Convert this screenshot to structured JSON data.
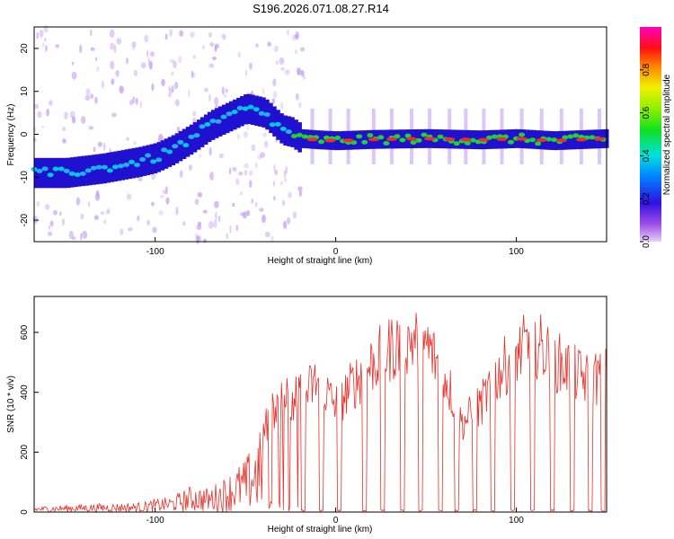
{
  "title": "S196.2026.071.08.27.R14",
  "colors": {
    "snr_line": "#e8302a",
    "ridge_core": "#e8302a",
    "ridge_mid": "#22d030",
    "ridge_edge": "#2010d0",
    "halo": "#c8a0f0"
  },
  "chart_data": [
    {
      "type": "heatmap",
      "name": "spectrogram",
      "xlabel": "Height of straight line (km)",
      "ylabel": "Frequency (Hz)",
      "xlim": [
        -167,
        150
      ],
      "ylim": [
        -25,
        25
      ],
      "x_ticks": [
        -100,
        0,
        100
      ],
      "x_tick_labels": [
        "-100",
        "0",
        "100"
      ],
      "y_ticks": [
        -20,
        -10,
        0,
        10,
        20
      ],
      "y_tick_labels": [
        "-20",
        "-10",
        "0",
        "10",
        "20"
      ],
      "ridge": {
        "x": [
          -167,
          -150,
          -130,
          -110,
          -100,
          -90,
          -80,
          -70,
          -60,
          -50,
          -40,
          -30,
          -25,
          -20,
          -10,
          0,
          20,
          50,
          80,
          100,
          120,
          150
        ],
        "freq_hz": [
          -9,
          -9,
          -8,
          -6.5,
          -5.5,
          -3.5,
          -1,
          2,
          4,
          6,
          5,
          1,
          0.5,
          -1,
          -1.3,
          -1.5,
          -1.2,
          -1,
          -1.3,
          -1,
          -1.5,
          -1
        ]
      },
      "colorbar": {
        "label": "Normalized spectral amplitude",
        "ticks": [
          0.0,
          0.2,
          0.4,
          0.6,
          0.8
        ],
        "tick_labels": [
          "0.0",
          "0.2",
          "0.4",
          "0.6",
          "0.8"
        ],
        "range": [
          0,
          1
        ]
      }
    },
    {
      "type": "line",
      "name": "snr",
      "xlabel": "Height of straight line (km)",
      "ylabel": "SNR (10 * v/v)",
      "xlim": [
        -167,
        150
      ],
      "ylim": [
        0,
        720
      ],
      "x_ticks": [
        -100,
        0,
        100
      ],
      "x_tick_labels": [
        "-100",
        "0",
        "100"
      ],
      "y_ticks": [
        0,
        200,
        400,
        600
      ],
      "y_tick_labels": [
        "0",
        "200",
        "400",
        "600"
      ],
      "envelope": {
        "x": [
          -167,
          -140,
          -110,
          -90,
          -80,
          -70,
          -60,
          -50,
          -40,
          -30,
          -20,
          -10,
          0,
          10,
          20,
          30,
          40,
          50,
          60,
          70,
          80,
          90,
          100,
          110,
          120,
          130,
          140,
          150
        ],
        "snr": [
          20,
          30,
          35,
          60,
          100,
          90,
          140,
          200,
          330,
          480,
          460,
          530,
          430,
          520,
          600,
          660,
          700,
          680,
          560,
          360,
          430,
          560,
          640,
          690,
          620,
          570,
          530,
          560
        ]
      },
      "dropouts_x": [
        -18,
        -8,
        2,
        16,
        26,
        37,
        47,
        58,
        67,
        77,
        87,
        98,
        109,
        120,
        131,
        141,
        148
      ]
    }
  ]
}
